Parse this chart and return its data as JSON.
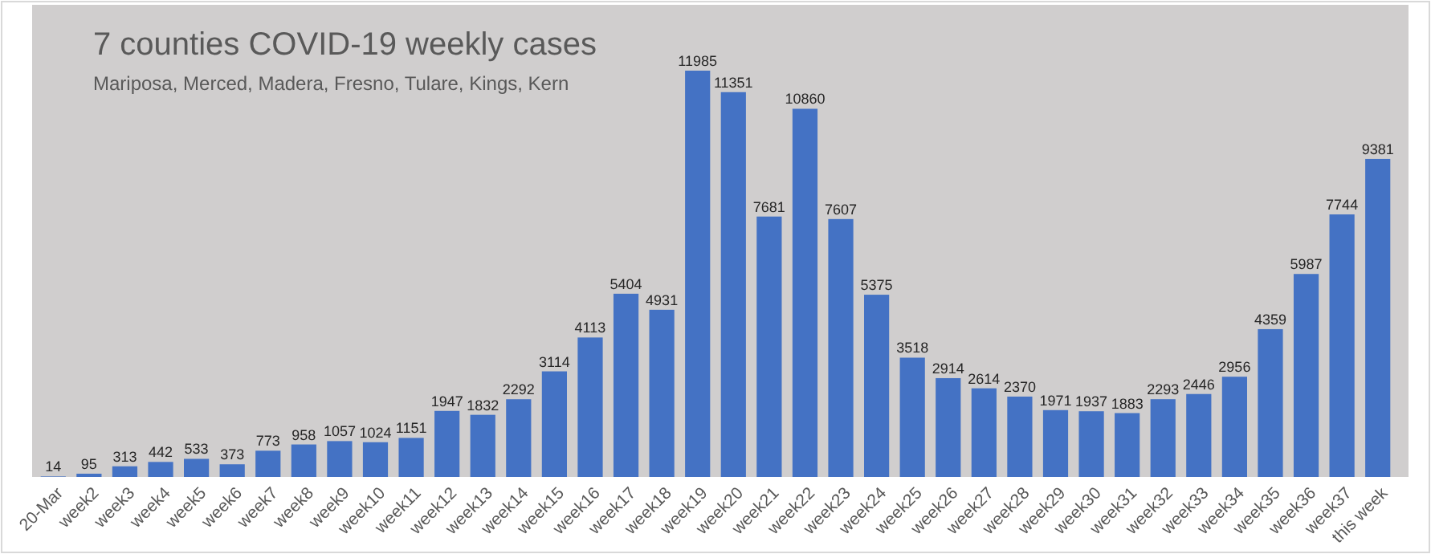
{
  "chart_data": {
    "type": "bar",
    "title": "7 counties COVID-19 weekly cases",
    "subtitle": "Mariposa, Merced, Madera, Fresno, Tulare, Kings, Kern",
    "categories": [
      "20-Mar",
      "week2",
      "week3",
      "week4",
      "week5",
      "week6",
      "week7",
      "week8",
      "week9",
      "week10",
      "week11",
      "week12",
      "week13",
      "week14",
      "week15",
      "week16",
      "week17",
      "week18",
      "week19",
      "week20",
      "week21",
      "week22",
      "week23",
      "week24",
      "week25",
      "week26",
      "week27",
      "week28",
      "week29",
      "week30",
      "week31",
      "week32",
      "week33",
      "week34",
      "week35",
      "week36",
      "week37",
      "this week"
    ],
    "values": [
      14,
      95,
      313,
      442,
      533,
      373,
      773,
      958,
      1057,
      1024,
      1151,
      1947,
      1832,
      2292,
      3114,
      4113,
      5404,
      4931,
      11985,
      11351,
      7681,
      10860,
      7607,
      5375,
      3518,
      2914,
      2614,
      2370,
      1971,
      1937,
      1883,
      2293,
      2446,
      2956,
      4359,
      5987,
      7744,
      9381
    ],
    "color": "#4472c4",
    "data_labels": true
  }
}
